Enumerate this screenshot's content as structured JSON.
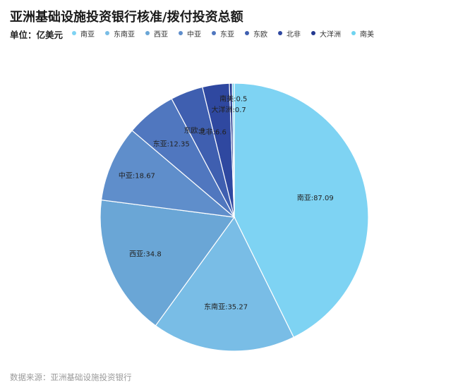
{
  "header": {
    "title": "亚洲基础设施投资银行核准/拨付投资总额",
    "unit": "单位：亿美元"
  },
  "footer": {
    "source": "数据来源：亚洲基础设施投资银行"
  },
  "chart_data": {
    "type": "pie",
    "title": "亚洲基础设施投资银行核准/拨付投资总额",
    "unit": "单位：亿美元",
    "legend_placement": "top",
    "categories": [
      "南亚",
      "东南亚",
      "西亚",
      "中亚",
      "东亚",
      "东欧",
      "北非",
      "大洋洲",
      "南美"
    ],
    "values": [
      87.09,
      35.27,
      34.8,
      18.67,
      12.35,
      8,
      6.6,
      0.7,
      0.5
    ],
    "labels": [
      "南亚:87.09",
      "东南亚:35.27",
      "西亚:34.8",
      "中亚:18.67",
      "东亚:12.35",
      "东欧:8",
      "北非:6.6",
      "大洋洲:0.7",
      "南美:0.5"
    ],
    "colors": [
      "#7ed3f3",
      "#79bde6",
      "#6aa6d6",
      "#5f8ecb",
      "#5077bf",
      "#3f5fb0",
      "#2f48a0",
      "#233890",
      "#6fd4f0"
    ]
  }
}
